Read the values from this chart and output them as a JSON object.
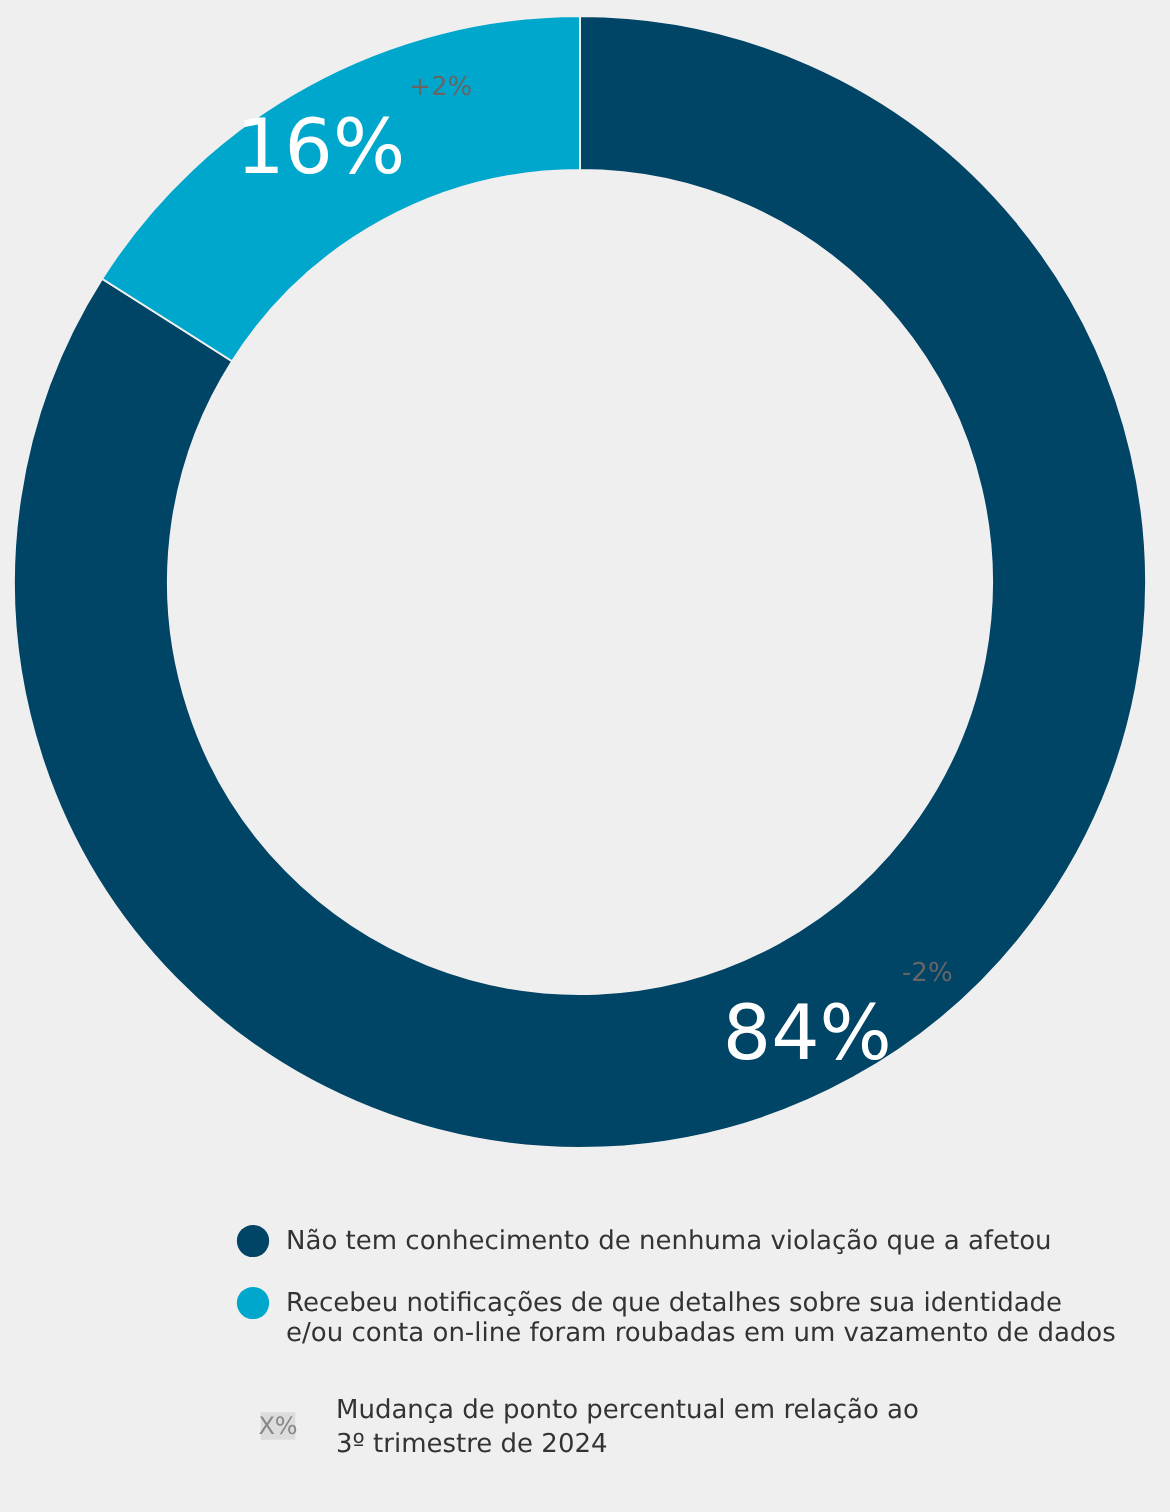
{
  "chart_data": {
    "type": "donut",
    "categories": [
      "Não tem conhecimento de nenhuma violação que a afetou",
      "Recebeu notificações de que detalhes sobre sua identidade e/ou conta on-line foram roubadas em um vazamento de dados"
    ],
    "values": [
      84,
      16
    ],
    "colors": [
      "#004466",
      "#00a7cc"
    ],
    "value_labels": [
      "84%",
      "16%"
    ],
    "annotations": [
      "-2%",
      "+2%",
      "X%",
      "Mudança de ponto percentual em relação ao 3º trimestre de 2024"
    ],
    "legend": "bottom"
  }
}
